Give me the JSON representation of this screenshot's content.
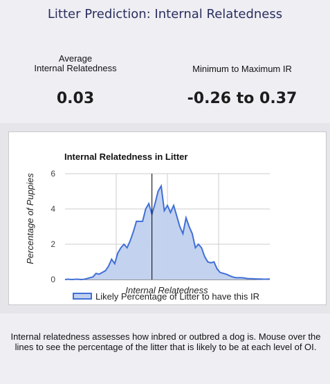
{
  "page": {
    "title": "Litter Prediction: Internal Relatedness"
  },
  "stats": {
    "average_label_line1": "Average",
    "average_label_line2": "Internal Relatedness",
    "average_value": "0.03",
    "range_label": "Minimum to Maximum IR",
    "range_value": "-0.26 to 0.37"
  },
  "chart_data": {
    "type": "area",
    "title": "Internal Relatedness in Litter",
    "xlabel": "Internal Relatedness",
    "ylabel": "Percentage of Puppies",
    "ylim": [
      0,
      6
    ],
    "y_ticks": [
      "0",
      "2",
      "4",
      "6"
    ],
    "grid": true,
    "legend_position": "bottom",
    "series": [
      {
        "name": "Likely Percentage of Litter to have this IR",
        "color": "#3f6fd6",
        "fill": "#c0d0ee",
        "values": [
          0,
          0.02,
          0,
          0.01,
          0.02,
          0,
          0.01,
          0.05,
          0.1,
          0.15,
          0.35,
          0.3,
          0.4,
          0.5,
          0.75,
          1.15,
          0.9,
          1.5,
          1.8,
          2,
          1.8,
          2.2,
          2.7,
          3.3,
          3.3,
          3.3,
          4,
          4.3,
          3.7,
          4.3,
          5,
          5.3,
          3.9,
          4.2,
          3.8,
          4.2,
          3.6,
          3,
          2.6,
          3.5,
          3,
          2.6,
          1.8,
          2,
          1.8,
          1.3,
          1,
          0.95,
          1,
          0.6,
          0.4,
          0.35,
          0.3,
          0.22,
          0.15,
          0.1,
          0.1,
          0.1,
          0.08,
          0.05,
          0.05,
          0.04,
          0.03,
          0.03,
          0.02,
          0.02,
          0.03
        ]
      }
    ],
    "mean_marker_index": 28
  },
  "description": "Internal relatedness assesses how inbred or outbred a dog is. Mouse over the lines to see the percentage of the litter that is likely to be at each level of OI."
}
